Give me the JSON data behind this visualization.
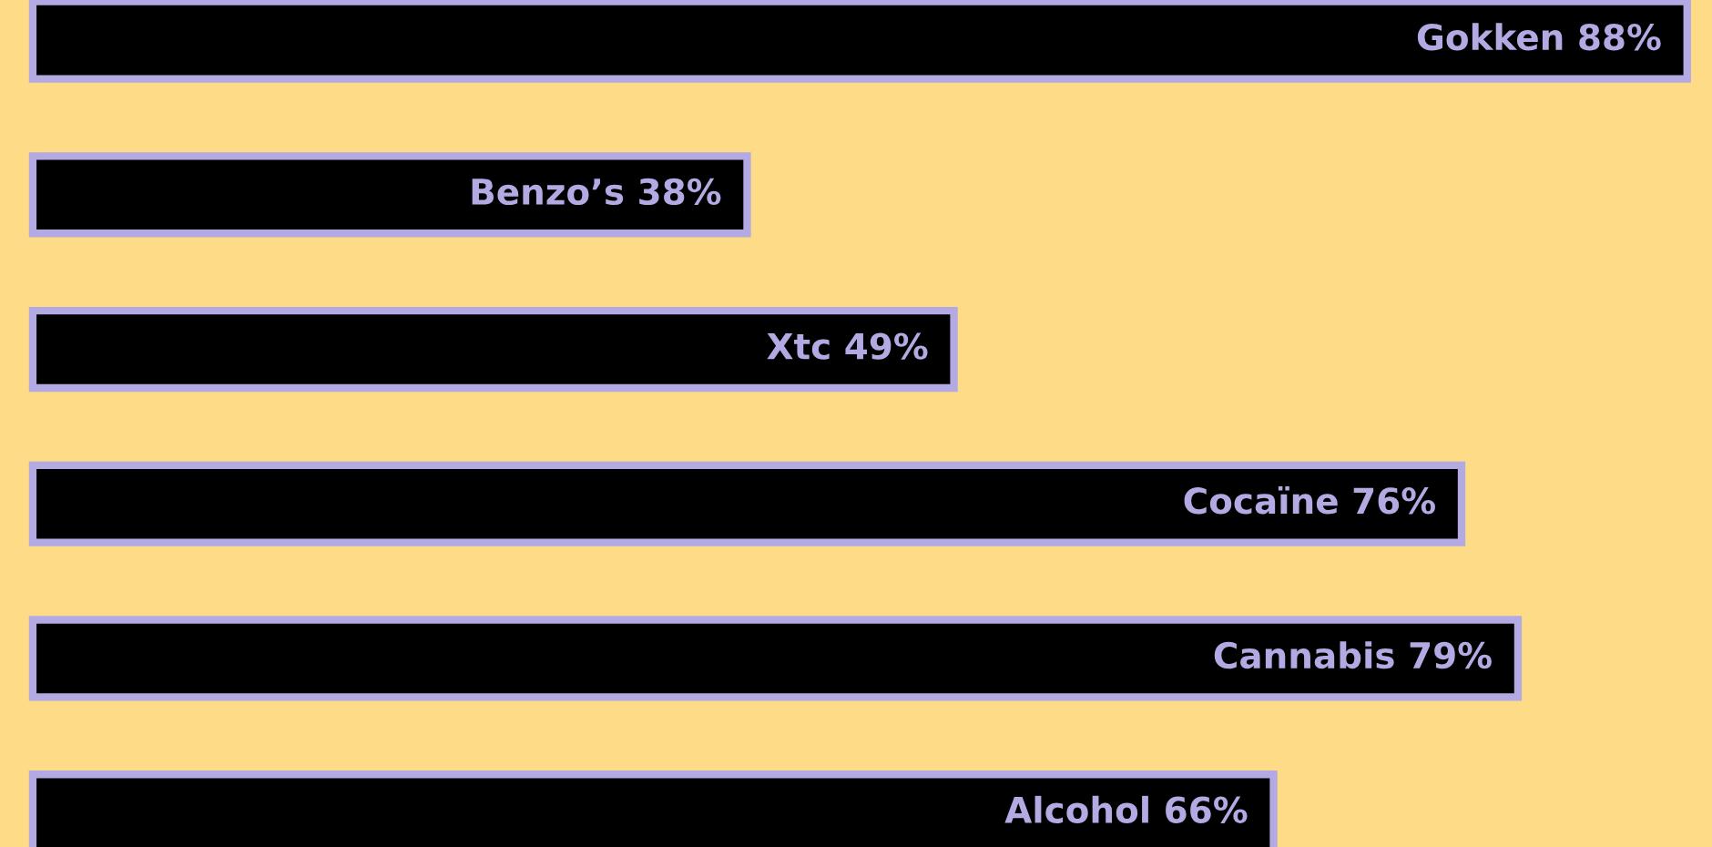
{
  "chart_data": {
    "type": "bar",
    "orientation": "horizontal",
    "categories": [
      null,
      null,
      null,
      null,
      null,
      null
    ],
    "values": [
      88,
      38,
      49,
      76,
      79,
      66
    ],
    "value_labels": [
      "Gokken 88%",
      "Benzo’s 38%",
      "Xtc 49%",
      "Cocaïne 76%",
      "Cannabis 79%",
      "Alcohol 66%"
    ],
    "color": "#000000",
    "grid": false,
    "legend": false
  }
}
